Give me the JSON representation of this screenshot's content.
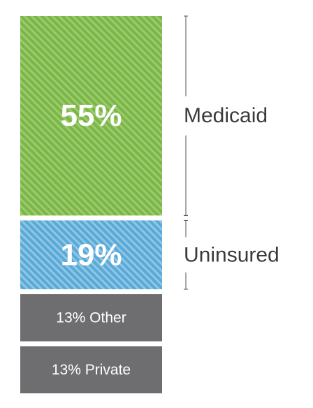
{
  "chart_data": {
    "type": "bar",
    "layout": "stacked-100",
    "segments": [
      {
        "value": 55,
        "label": "55%",
        "category": "Medicaid",
        "color": "#7ab648",
        "stripe": "#9ccb6d",
        "pattern": "striped"
      },
      {
        "value": 19,
        "label": "19%",
        "category": "Uninsured",
        "color": "#5aa9d6",
        "stripe": "#8fc7e7",
        "pattern": "striped"
      },
      {
        "value": 13,
        "label": "13% Other",
        "category": "",
        "color": "#6e6e70",
        "pattern": "solid"
      },
      {
        "value": 13,
        "label": "13% Private",
        "category": "",
        "color": "#6e6e70",
        "pattern": "solid"
      }
    ],
    "unit": "%"
  }
}
